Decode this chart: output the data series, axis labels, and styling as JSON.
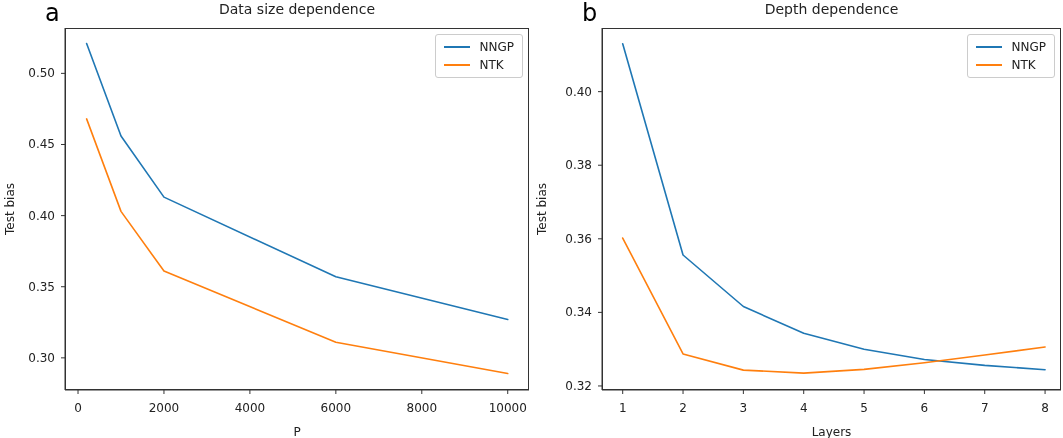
{
  "chart_data": [
    {
      "type": "line",
      "title": "Data size dependence",
      "xlabel": "P",
      "ylabel": "Test bias",
      "annotations": [
        "a"
      ],
      "x": [
        200,
        1000,
        2000,
        6000,
        10000
      ],
      "xlim": [
        -303,
        10495
      ],
      "xticks": [
        0,
        2000,
        4000,
        6000,
        8000,
        10000
      ],
      "ylim": [
        0.2774,
        0.5319
      ],
      "yticks": [
        {
          "value": 0.3,
          "label": "0.30"
        },
        0.35,
        {
          "value": 0.4,
          "label": "0.40"
        },
        0.45,
        {
          "value": 0.5,
          "label": "0.50"
        }
      ],
      "legend": "top right",
      "grid": false,
      "series": [
        {
          "name": "NNGP",
          "color": "#1f77b4",
          "values": [
            0.521,
            0.456,
            0.413,
            0.357,
            0.327
          ]
        },
        {
          "name": "NTK",
          "color": "#ff7f0e",
          "values": [
            0.468,
            0.403,
            0.361,
            0.311,
            0.289
          ]
        }
      ]
    },
    {
      "type": "line",
      "title": "Depth dependence",
      "xlabel": "Layers",
      "ylabel": "Test bias",
      "annotations": [
        "b"
      ],
      "x": [
        1,
        2,
        3,
        4,
        5,
        6,
        7,
        8
      ],
      "xlim": [
        0.657,
        8.264
      ],
      "xticks": [
        1,
        2,
        3,
        4,
        5,
        6,
        7,
        8
      ],
      "ylim": [
        0.3189,
        0.4173
      ],
      "yticks": [
        {
          "value": 0.32,
          "label": "0.32"
        },
        0.34,
        0.36,
        0.38,
        {
          "value": 0.4,
          "label": "0.40"
        }
      ],
      "legend": "top right",
      "grid": false,
      "series": [
        {
          "name": "NNGP",
          "color": "#1f77b4",
          "values": [
            0.413,
            0.3556,
            0.3416,
            0.3343,
            0.33,
            0.3272,
            0.3256,
            0.3244
          ]
        },
        {
          "name": "NTK",
          "color": "#ff7f0e",
          "values": [
            0.3602,
            0.3287,
            0.3243,
            0.3235,
            0.3245,
            0.3263,
            0.3284,
            0.3306
          ]
        }
      ]
    }
  ]
}
